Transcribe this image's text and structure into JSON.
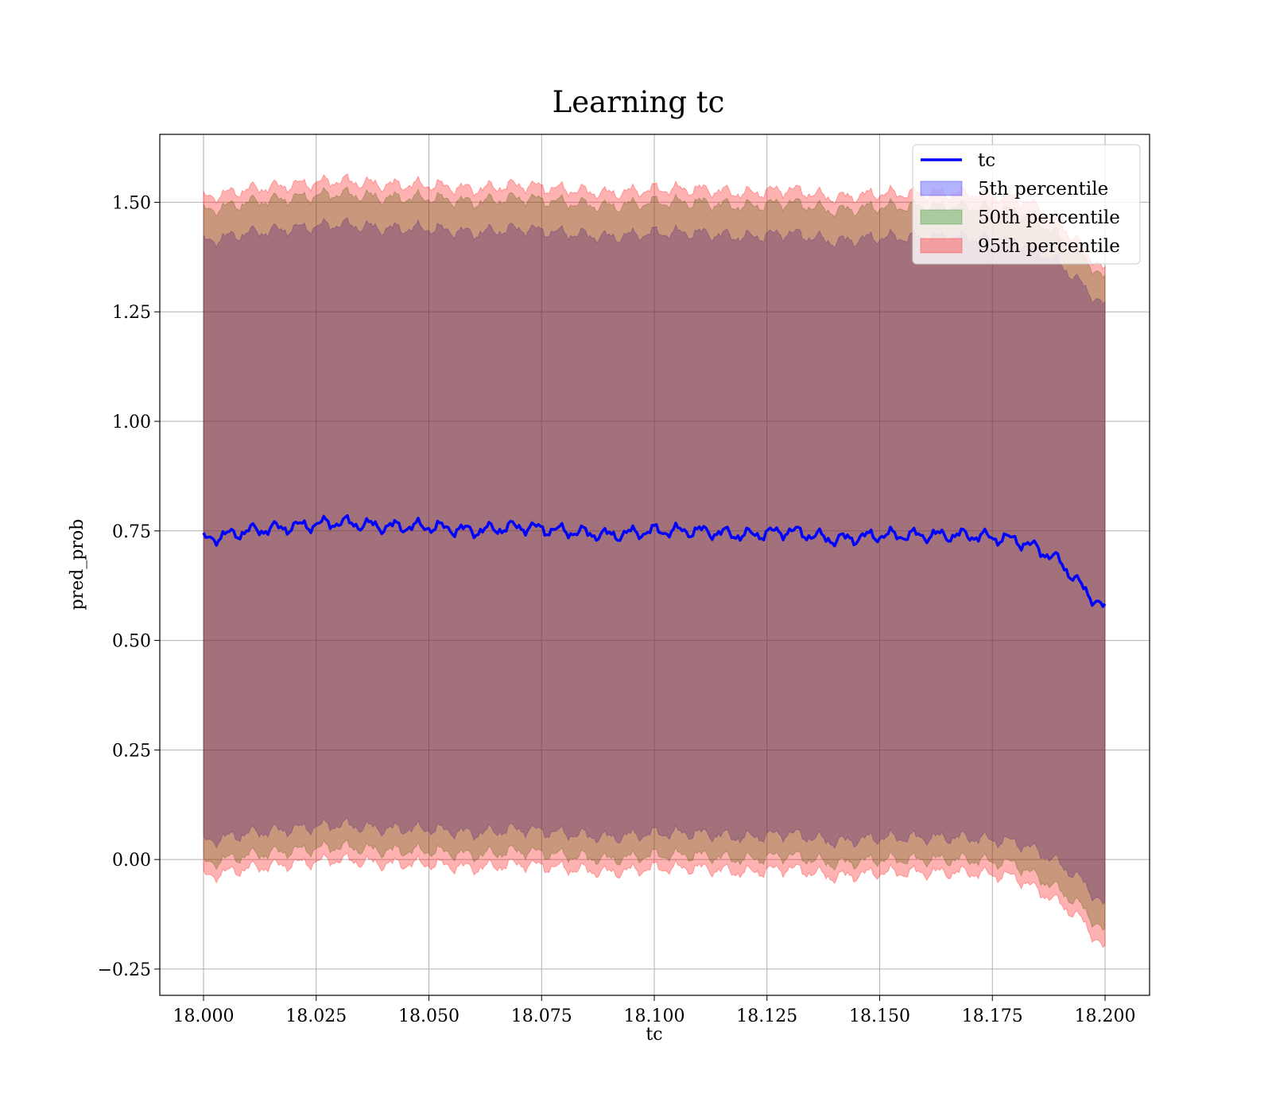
{
  "chart_data": {
    "type": "line",
    "title": "Learning tc",
    "xlabel": "tc",
    "ylabel": "pred_prob",
    "xlim": [
      17.9805,
      18.2
    ],
    "ylim": [
      -0.31,
      1.655
    ],
    "x_ticks": [
      18.0,
      18.025,
      18.05,
      18.075,
      18.1,
      18.125,
      18.15,
      18.175,
      18.2
    ],
    "x_tick_labels": [
      "18.000",
      "18.025",
      "18.050",
      "18.075",
      "18.100",
      "18.125",
      "18.150",
      "18.175",
      "18.200"
    ],
    "y_ticks": [
      -0.25,
      0.0,
      0.25,
      0.5,
      0.75,
      1.0,
      1.25,
      1.5
    ],
    "y_tick_labels": [
      "−0.25",
      "0.00",
      "0.25",
      "0.50",
      "0.75",
      "1.00",
      "1.25",
      "1.50"
    ],
    "grid": true,
    "legend_position": "top-right",
    "legend": [
      {
        "label": "tc",
        "kind": "line",
        "color": "#0000ff"
      },
      {
        "label": "5th percentile",
        "kind": "patch",
        "color": "#0000ff"
      },
      {
        "label": "50th percentile",
        "kind": "patch",
        "color": "#008000"
      },
      {
        "label": "95th percentile",
        "kind": "patch",
        "color": "#ff0000"
      }
    ],
    "x": [
      18.0,
      18.01,
      18.02,
      18.03,
      18.04,
      18.05,
      18.06,
      18.07,
      18.08,
      18.09,
      18.1,
      18.11,
      18.12,
      18.13,
      18.14,
      18.15,
      18.16,
      18.17,
      18.18,
      18.185,
      18.19,
      18.195,
      18.2
    ],
    "series": [
      {
        "name": "tc",
        "color": "#0000ff",
        "values": [
          0.73,
          0.75,
          0.76,
          0.77,
          0.76,
          0.76,
          0.75,
          0.76,
          0.75,
          0.74,
          0.75,
          0.75,
          0.74,
          0.75,
          0.73,
          0.74,
          0.74,
          0.74,
          0.73,
          0.71,
          0.68,
          0.62,
          0.57
        ]
      },
      {
        "name": "5th percentile",
        "color": "#0000ff",
        "lower": [
          0.04,
          0.06,
          0.07,
          0.08,
          0.07,
          0.07,
          0.06,
          0.07,
          0.06,
          0.05,
          0.06,
          0.06,
          0.05,
          0.06,
          0.04,
          0.05,
          0.05,
          0.05,
          0.04,
          0.02,
          -0.01,
          -0.05,
          -0.11
        ],
        "upper": [
          1.41,
          1.43,
          1.44,
          1.45,
          1.44,
          1.44,
          1.43,
          1.44,
          1.43,
          1.42,
          1.43,
          1.43,
          1.42,
          1.43,
          1.41,
          1.42,
          1.42,
          1.42,
          1.41,
          1.39,
          1.36,
          1.31,
          1.26
        ]
      },
      {
        "name": "50th percentile",
        "color": "#008000",
        "lower": [
          -0.01,
          0.01,
          0.02,
          0.03,
          0.02,
          0.02,
          0.01,
          0.02,
          0.01,
          0.0,
          0.01,
          0.01,
          0.0,
          0.01,
          -0.01,
          0.0,
          0.0,
          0.0,
          -0.01,
          -0.04,
          -0.07,
          -0.11,
          -0.17
        ],
        "upper": [
          1.48,
          1.5,
          1.51,
          1.52,
          1.51,
          1.51,
          1.5,
          1.51,
          1.5,
          1.49,
          1.5,
          1.5,
          1.49,
          1.5,
          1.48,
          1.49,
          1.49,
          1.49,
          1.48,
          1.46,
          1.42,
          1.38,
          1.32
        ]
      },
      {
        "name": "95th percentile",
        "color": "#ff0000",
        "lower": [
          -0.04,
          -0.02,
          -0.01,
          0.0,
          -0.01,
          -0.01,
          -0.02,
          -0.01,
          -0.02,
          -0.03,
          -0.02,
          -0.02,
          -0.03,
          -0.02,
          -0.04,
          -0.03,
          -0.03,
          -0.03,
          -0.04,
          -0.07,
          -0.1,
          -0.14,
          -0.21
        ],
        "upper": [
          1.51,
          1.53,
          1.54,
          1.55,
          1.54,
          1.54,
          1.53,
          1.54,
          1.53,
          1.52,
          1.53,
          1.53,
          1.52,
          1.53,
          1.51,
          1.52,
          1.52,
          1.52,
          1.51,
          1.49,
          1.45,
          1.4,
          1.34
        ]
      }
    ]
  }
}
